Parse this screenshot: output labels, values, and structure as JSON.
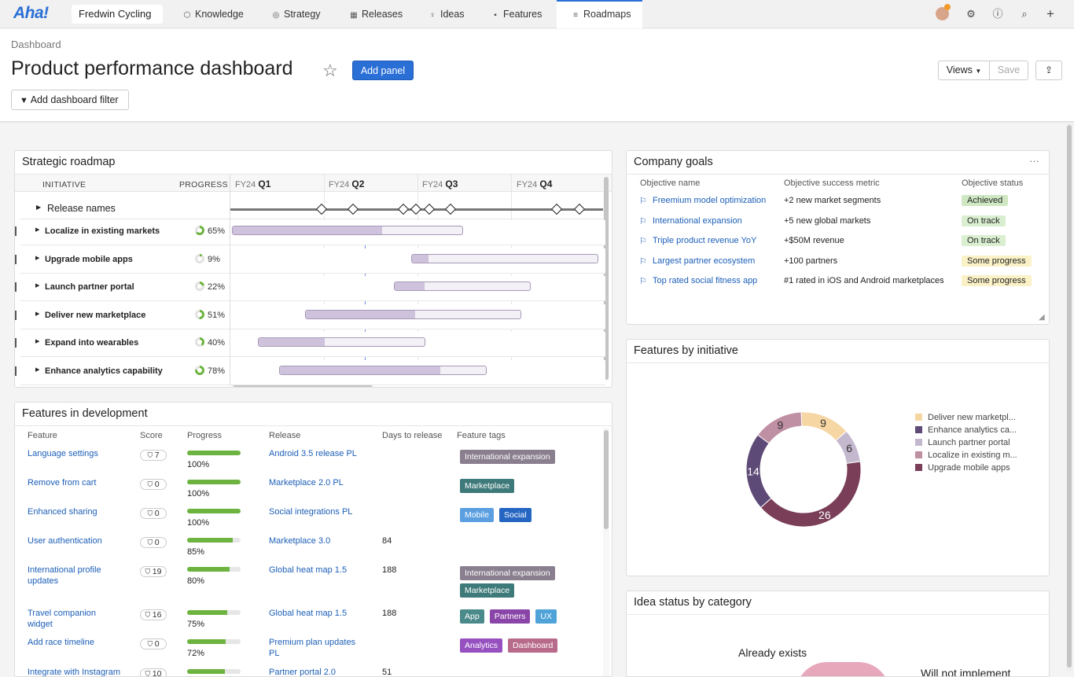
{
  "nav": {
    "logo": "Aha!",
    "workspace": "Fredwin Cycling",
    "tabs": [
      {
        "label": "Knowledge",
        "icon": "cube-icon"
      },
      {
        "label": "Strategy",
        "icon": "target-icon"
      },
      {
        "label": "Releases",
        "icon": "calendar-icon"
      },
      {
        "label": "Ideas",
        "icon": "lightbulb-icon"
      },
      {
        "label": "Features",
        "icon": "grid-icon"
      },
      {
        "label": "Roadmaps",
        "icon": "roadmap-icon"
      }
    ]
  },
  "header": {
    "breadcrumb": "Dashboard",
    "title": "Product performance dashboard",
    "add_panel": "Add panel",
    "filter": "Add dashboard filter",
    "views": "Views",
    "save": "Save"
  },
  "roadmap": {
    "title": "Strategic roadmap",
    "col_initiative": "INITIATIVE",
    "col_progress": "PROGRESS",
    "quarters": [
      {
        "fy": "FY24",
        "q": "Q1"
      },
      {
        "fy": "FY24",
        "q": "Q2"
      },
      {
        "fy": "FY24",
        "q": "Q3"
      },
      {
        "fy": "FY24",
        "q": "Q4"
      }
    ],
    "release_row": "Release names",
    "rows": [
      {
        "name": "Localize in existing markets",
        "progress": "65%",
        "pct": 65
      },
      {
        "name": "Upgrade mobile apps",
        "progress": "9%",
        "pct": 9
      },
      {
        "name": "Launch partner portal",
        "progress": "22%",
        "pct": 22
      },
      {
        "name": "Deliver new marketplace",
        "progress": "51%",
        "pct": 51
      },
      {
        "name": "Expand into wearables",
        "progress": "40%",
        "pct": 40
      },
      {
        "name": "Enhance analytics capability",
        "progress": "78%",
        "pct": 78
      }
    ]
  },
  "goals": {
    "title": "Company goals",
    "headers": [
      "Objective name",
      "Objective success metric",
      "Objective status"
    ],
    "rows": [
      {
        "name": "Freemium model optimization",
        "metric": "+2 new market segments",
        "status": "Achieved",
        "color": "#cfe8c3"
      },
      {
        "name": "International expansion",
        "metric": "+5 new global markets",
        "status": "On track",
        "color": "#d9efd0"
      },
      {
        "name": "Triple product revenue YoY",
        "metric": "+$50M revenue",
        "status": "On track",
        "color": "#d9efd0"
      },
      {
        "name": "Largest partner ecosystem",
        "metric": "+100 partners",
        "status": "Some progress",
        "color": "#fbf1c7"
      },
      {
        "name": "Top rated social fitness app",
        "metric": "#1 rated in iOS and Android marketplaces",
        "status": "Some progress",
        "color": "#fbf1c7"
      }
    ]
  },
  "features_dev": {
    "title": "Features in development",
    "headers": [
      "Feature",
      "Score",
      "Progress",
      "Release",
      "Days to release",
      "Feature tags"
    ],
    "rows": [
      {
        "feature": [
          "Language settings"
        ],
        "score": "7",
        "progress": "100%",
        "pct": 100,
        "release": [
          "Android 3.5 release PL"
        ],
        "days": "",
        "tags": [
          {
            "label": "International expansion",
            "color": "#8a7f8e"
          }
        ]
      },
      {
        "feature": [
          "Remove from cart"
        ],
        "score": "0",
        "progress": "100%",
        "pct": 100,
        "release": [
          "Marketplace 2.0 PL"
        ],
        "days": "",
        "tags": [
          {
            "label": "Marketplace",
            "color": "#3f7a7a"
          }
        ]
      },
      {
        "feature": [
          "Enhanced sharing"
        ],
        "score": "0",
        "progress": "100%",
        "pct": 100,
        "release": [
          "Social integrations PL"
        ],
        "days": "",
        "tags": [
          {
            "label": "Mobile",
            "color": "#5b9fe0"
          },
          {
            "label": "Social",
            "color": "#2566c2"
          }
        ]
      },
      {
        "feature": [
          "User authentication"
        ],
        "score": "0",
        "progress": "85%",
        "pct": 85,
        "release": [
          "Marketplace 3.0"
        ],
        "days": "84",
        "tags": []
      },
      {
        "feature": [
          "International profile",
          "updates"
        ],
        "score": "19",
        "progress": "80%",
        "pct": 80,
        "release": [
          "Global heat map 1.5"
        ],
        "days": "188",
        "tags": [
          {
            "label": "International expansion",
            "color": "#8a7f8e"
          },
          {
            "label": "Marketplace",
            "color": "#3f7a7a"
          }
        ]
      },
      {
        "feature": [
          "Travel companion",
          "widget"
        ],
        "score": "16",
        "progress": "75%",
        "pct": 75,
        "release": [
          "Global heat map 1.5"
        ],
        "days": "188",
        "tags": [
          {
            "label": "App",
            "color": "#4b8a8a"
          },
          {
            "label": "Partners",
            "color": "#8a45a8"
          },
          {
            "label": "UX",
            "color": "#4fa3d8"
          }
        ]
      },
      {
        "feature": [
          "Add race timeline"
        ],
        "score": "0",
        "progress": "72%",
        "pct": 72,
        "release": [
          "Premium plan updates",
          "PL"
        ],
        "days": "",
        "tags": [
          {
            "label": "Analytics",
            "color": "#9650c0"
          },
          {
            "label": "Dashboard",
            "color": "#b86a8a"
          }
        ]
      },
      {
        "feature": [
          "Integrate with Instagram"
        ],
        "score": "10",
        "progress": "",
        "pct": 70,
        "release": [
          "Partner portal 2.0"
        ],
        "days": "51",
        "tags": []
      }
    ]
  },
  "features_by_initiative": {
    "title": "Features by initiative",
    "chart_data": {
      "type": "pie",
      "donut": true,
      "slices": [
        {
          "name": "Deliver new marketpl...",
          "value": 9,
          "color": "#f6d6a3"
        },
        {
          "name": "Enhance analytics ca...",
          "value": 14,
          "color": "#5e4a77"
        },
        {
          "name": "Launch partner portal",
          "value": 6,
          "color": "#c4b8cf"
        },
        {
          "name": "Localize in existing m...",
          "value": 9,
          "color": "#bf8fa3"
        },
        {
          "name": "Upgrade mobile apps",
          "value": 26,
          "color": "#7a3e58"
        }
      ],
      "order_clockwise_from_top": [
        "Deliver new marketpl...",
        "Launch partner portal",
        "Upgrade mobile apps",
        "Enhance analytics ca...",
        "Localize in existing m..."
      ],
      "legend_position": "right"
    }
  },
  "idea_status": {
    "title": "Idea status by category",
    "labels": [
      "Already exists",
      "Will not implement"
    ]
  }
}
